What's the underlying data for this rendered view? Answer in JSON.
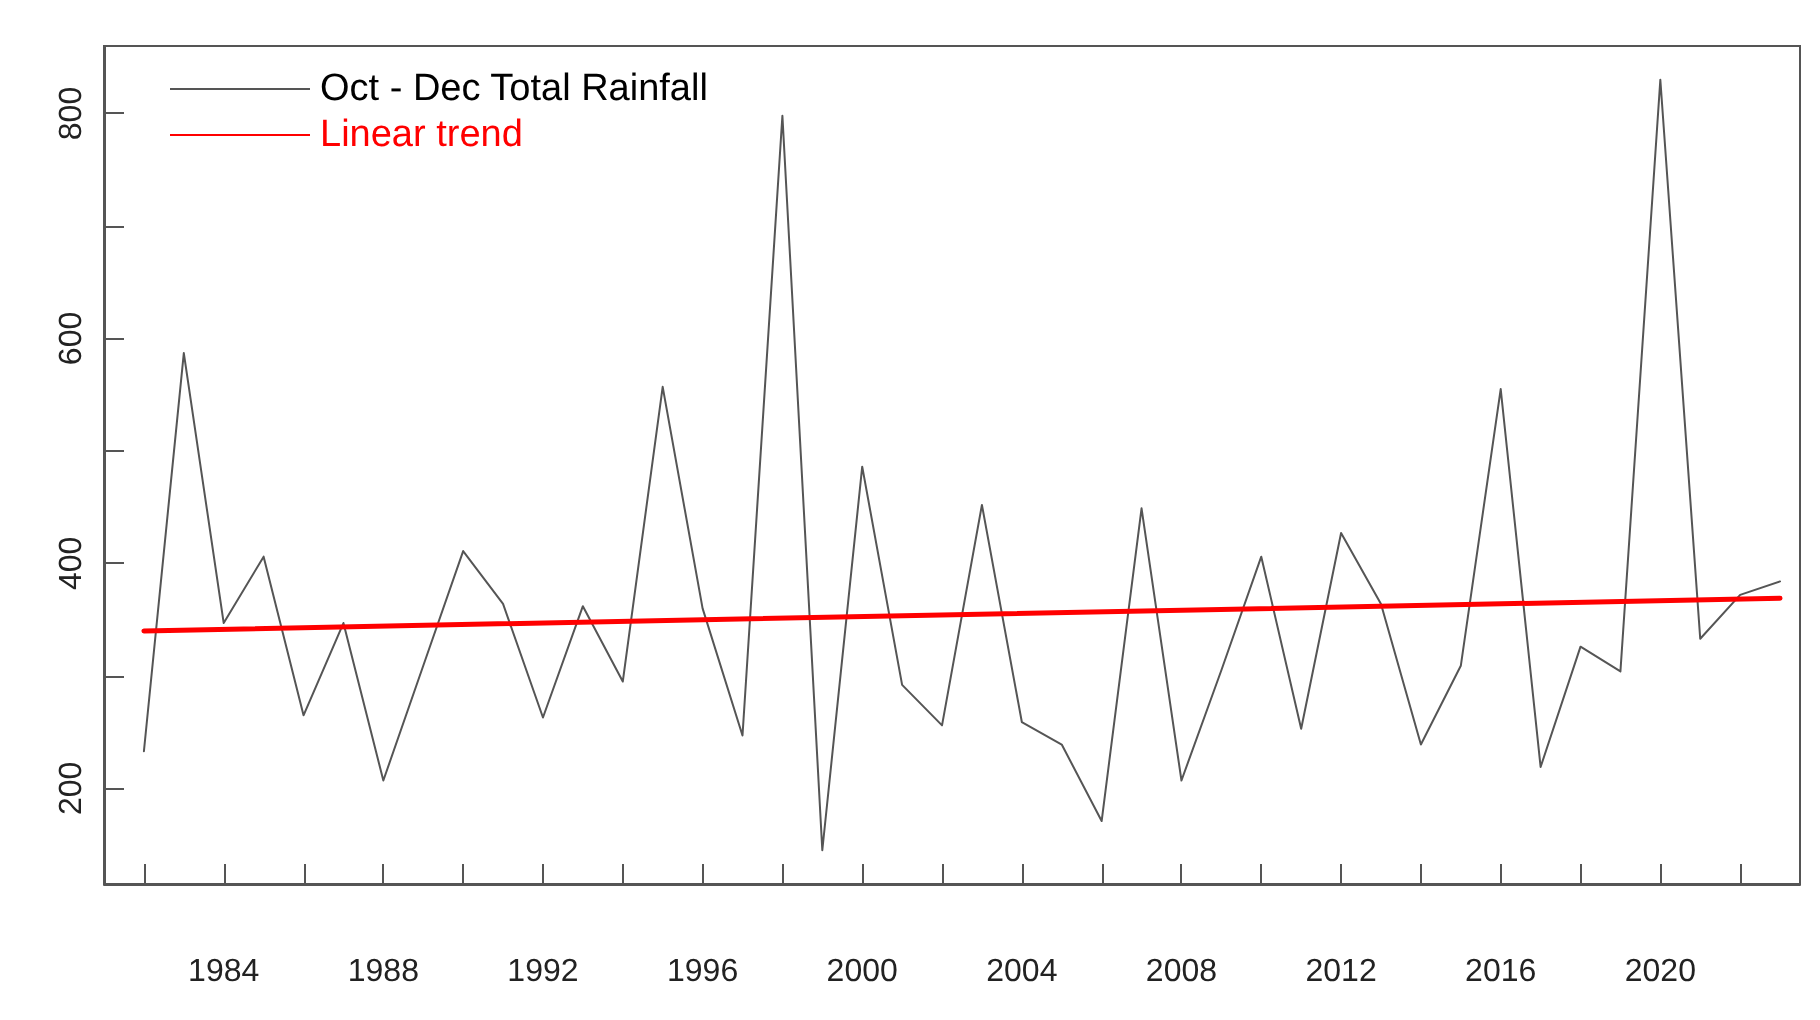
{
  "chart_data": {
    "type": "line",
    "x": [
      1982,
      1983,
      1984,
      1985,
      1986,
      1987,
      1988,
      1989,
      1990,
      1991,
      1992,
      1993,
      1994,
      1995,
      1996,
      1997,
      1998,
      1999,
      2000,
      2001,
      2002,
      2003,
      2004,
      2005,
      2006,
      2007,
      2008,
      2009,
      2010,
      2011,
      2012,
      2013,
      2014,
      2015,
      2016,
      2017,
      2018,
      2019,
      2020,
      2021,
      2022,
      2023
    ],
    "series": [
      {
        "name": "Oct - Dec Total Rainfall",
        "color": "#555555",
        "values": [
          233,
          587,
          347,
          406,
          265,
          347,
          207,
          309,
          411,
          364,
          263,
          362,
          295,
          557,
          360,
          247,
          798,
          145,
          486,
          292,
          256,
          452,
          259,
          239,
          171,
          449,
          207,
          305,
          406,
          253,
          427,
          364,
          239,
          309,
          555,
          219,
          326,
          304,
          830,
          333,
          372,
          384
        ]
      },
      {
        "name": "Linear trend",
        "type": "line",
        "color": "#ff0000",
        "x": [
          1982,
          2023
        ],
        "values": [
          340,
          369
        ]
      }
    ],
    "xlim": [
      1981,
      2023.5
    ],
    "xticks": [
      {
        "value": 1982,
        "label": null
      },
      1984,
      {
        "value": 1986,
        "label": null
      },
      1988,
      {
        "value": 1990,
        "label": null
      },
      1992,
      {
        "value": 1994,
        "label": null
      },
      1996,
      {
        "value": 1998,
        "label": null
      },
      2000,
      {
        "value": 2002,
        "label": null
      },
      2004,
      {
        "value": 2006,
        "label": null
      },
      2008,
      {
        "value": 2010,
        "label": null
      },
      2012,
      {
        "value": 2014,
        "label": null
      },
      2016,
      {
        "value": 2018,
        "label": null
      },
      2020,
      {
        "value": 2022,
        "label": null
      }
    ],
    "ylim": [
      115,
      860
    ],
    "yticks": [
      200,
      {
        "value": 300,
        "label": null
      },
      400,
      {
        "value": 500,
        "label": null
      },
      600,
      {
        "value": 700,
        "label": null
      },
      800
    ],
    "legend": "top left",
    "grid": false,
    "marker": "none"
  }
}
